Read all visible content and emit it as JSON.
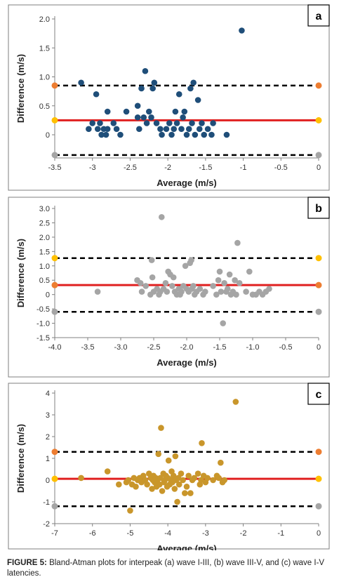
{
  "chart_data": [
    {
      "type": "scatter",
      "panel_label": "a",
      "xlabel": "Average (m/s)",
      "ylabel": "Difference (m/s)",
      "xlim": [
        -3.5,
        0
      ],
      "ylim": [
        -0.4,
        2.0
      ],
      "xticks": [
        -3.5,
        -3,
        -2.5,
        -2,
        -1.5,
        -1,
        -0.5,
        0
      ],
      "xtick_labels": [
        "-3.5",
        "-3",
        "-2.5",
        "-2",
        "-1.5",
        "-1",
        "-0.5",
        "0"
      ],
      "yticks": [
        0,
        0.5,
        1.0,
        1.5,
        2.0
      ],
      "ytick_labels": [
        "0",
        "0.5",
        "1.0",
        "1.5",
        "2.0"
      ],
      "point_color": "#1f4e79",
      "mean_line": 0.25,
      "upper_loa": 0.85,
      "lower_loa": -0.35,
      "endpoint_colors": {
        "upper": "#ed7d31",
        "mean": "#ffc000",
        "lower": "#a5a5a5"
      },
      "points": [
        [
          -3.15,
          0.9
        ],
        [
          -3.05,
          0.1
        ],
        [
          -3.0,
          0.2
        ],
        [
          -2.95,
          0.7
        ],
        [
          -2.93,
          0.1
        ],
        [
          -2.9,
          0.2
        ],
        [
          -2.88,
          0.0
        ],
        [
          -2.85,
          0.1
        ],
        [
          -2.82,
          0.0
        ],
        [
          -2.8,
          0.4
        ],
        [
          -2.8,
          0.1
        ],
        [
          -2.72,
          0.2
        ],
        [
          -2.68,
          0.1
        ],
        [
          -2.63,
          0.0
        ],
        [
          -2.55,
          0.4
        ],
        [
          -2.4,
          0.5
        ],
        [
          -2.4,
          0.3
        ],
        [
          -2.38,
          0.1
        ],
        [
          -2.35,
          0.8
        ],
        [
          -2.32,
          0.3
        ],
        [
          -2.3,
          1.1
        ],
        [
          -2.28,
          0.2
        ],
        [
          -2.25,
          0.4
        ],
        [
          -2.22,
          0.3
        ],
        [
          -2.2,
          0.8
        ],
        [
          -2.18,
          0.9
        ],
        [
          -2.15,
          0.2
        ],
        [
          -2.1,
          0.1
        ],
        [
          -2.08,
          0.0
        ],
        [
          -2.02,
          0.1
        ],
        [
          -1.98,
          0.2
        ],
        [
          -1.95,
          0.0
        ],
        [
          -1.92,
          0.1
        ],
        [
          -1.9,
          0.4
        ],
        [
          -1.88,
          0.2
        ],
        [
          -1.85,
          0.7
        ],
        [
          -1.82,
          0.1
        ],
        [
          -1.8,
          0.3
        ],
        [
          -1.78,
          0.4
        ],
        [
          -1.75,
          0.0
        ],
        [
          -1.72,
          0.1
        ],
        [
          -1.7,
          0.8
        ],
        [
          -1.68,
          0.2
        ],
        [
          -1.66,
          0.9
        ],
        [
          -1.64,
          0.0
        ],
        [
          -1.6,
          0.6
        ],
        [
          -1.58,
          0.1
        ],
        [
          -1.55,
          0.2
        ],
        [
          -1.52,
          0.0
        ],
        [
          -1.47,
          0.1
        ],
        [
          -1.42,
          0.0
        ],
        [
          -1.4,
          0.2
        ],
        [
          -1.22,
          0.0
        ],
        [
          -1.02,
          1.8
        ]
      ]
    },
    {
      "type": "scatter",
      "panel_label": "b",
      "xlabel": "Average (m/s)",
      "ylabel": "Difference (m/s)",
      "xlim": [
        -4.0,
        0
      ],
      "ylim": [
        -1.5,
        3.0
      ],
      "xticks": [
        -4.0,
        -3.5,
        -3.0,
        -2.5,
        -2.0,
        -1.5,
        -1.0,
        -0.5,
        0
      ],
      "xtick_labels": [
        "-4.0",
        "-3.5",
        "-3.0",
        "-2.5",
        "-2.0",
        "-1.5",
        "-1.0",
        "-0.5",
        "0"
      ],
      "yticks": [
        -1.5,
        -1.0,
        -0.5,
        0,
        0.5,
        1.0,
        1.5,
        2.0,
        2.5,
        3.0
      ],
      "ytick_labels": [
        "-1.5",
        "-1.0",
        "-0.5",
        "0",
        "0.5",
        "1.0",
        "1.5",
        "2.0",
        "2.5",
        "3.0"
      ],
      "point_color": "#a5a5a5",
      "mean_line": 0.33,
      "upper_loa": 1.27,
      "lower_loa": -0.6,
      "endpoint_colors": {
        "upper": "#ffc000",
        "mean": "#ed7d31",
        "lower": "#a5a5a5"
      },
      "points": [
        [
          -3.35,
          0.1
        ],
        [
          -2.75,
          0.5
        ],
        [
          -2.7,
          0.4
        ],
        [
          -2.68,
          0.1
        ],
        [
          -2.62,
          0.3
        ],
        [
          -2.55,
          0.0
        ],
        [
          -2.53,
          1.2
        ],
        [
          -2.52,
          0.6
        ],
        [
          -2.5,
          0.1
        ],
        [
          -2.45,
          0.2
        ],
        [
          -2.42,
          0.0
        ],
        [
          -2.4,
          0.1
        ],
        [
          -2.38,
          2.7
        ],
        [
          -2.35,
          0.2
        ],
        [
          -2.32,
          0.4
        ],
        [
          -2.3,
          0.1
        ],
        [
          -2.28,
          0.8
        ],
        [
          -2.25,
          0.7
        ],
        [
          -2.22,
          0.3
        ],
        [
          -2.2,
          0.6
        ],
        [
          -2.18,
          0.1
        ],
        [
          -2.15,
          0.0
        ],
        [
          -2.12,
          0.2
        ],
        [
          -2.1,
          0.0
        ],
        [
          -2.08,
          0.1
        ],
        [
          -2.05,
          0.3
        ],
        [
          -2.02,
          1.0
        ],
        [
          -2.0,
          0.2
        ],
        [
          -1.97,
          0.1
        ],
        [
          -1.95,
          1.1
        ],
        [
          -1.93,
          1.2
        ],
        [
          -1.92,
          0.2
        ],
        [
          -1.9,
          0.3
        ],
        [
          -1.88,
          0.0
        ],
        [
          -1.85,
          0.1
        ],
        [
          -1.8,
          0.2
        ],
        [
          -1.75,
          0.0
        ],
        [
          -1.72,
          0.1
        ],
        [
          -1.6,
          0.3
        ],
        [
          -1.55,
          0.0
        ],
        [
          -1.52,
          0.5
        ],
        [
          -1.5,
          0.8
        ],
        [
          -1.48,
          0.1
        ],
        [
          -1.45,
          -1.0
        ],
        [
          -1.43,
          0.4
        ],
        [
          -1.4,
          0.1
        ],
        [
          -1.38,
          0.2
        ],
        [
          -1.35,
          0.7
        ],
        [
          -1.33,
          0.0
        ],
        [
          -1.3,
          0.1
        ],
        [
          -1.27,
          0.5
        ],
        [
          -1.25,
          0.0
        ],
        [
          -1.23,
          1.8
        ],
        [
          -1.2,
          0.4
        ],
        [
          -1.1,
          0.1
        ],
        [
          -1.05,
          0.8
        ],
        [
          -1.0,
          0.0
        ],
        [
          -0.95,
          0.0
        ],
        [
          -0.9,
          0.1
        ],
        [
          -0.85,
          0.0
        ],
        [
          -0.8,
          0.1
        ],
        [
          -0.75,
          0.2
        ]
      ]
    },
    {
      "type": "scatter",
      "panel_label": "c",
      "xlabel": "Average (m/s)",
      "ylabel": "Difference (m/s)",
      "xlim": [
        -7,
        0
      ],
      "ylim": [
        -2,
        4
      ],
      "xticks": [
        -7,
        -6,
        -5,
        -4,
        -3,
        -2,
        -1,
        0
      ],
      "xtick_labels": [
        "-7",
        "-6",
        "-5",
        "-4",
        "-3",
        "-2",
        "-1",
        "0"
      ],
      "yticks": [
        -2,
        -1,
        0,
        1,
        2,
        3,
        4
      ],
      "ytick_labels": [
        "-2",
        "-1",
        "0",
        "1",
        "2",
        "3",
        "4"
      ],
      "point_color": "#c9962b",
      "mean_line": 0.06,
      "upper_loa": 1.3,
      "lower_loa": -1.2,
      "endpoint_colors": {
        "upper": "#ed7d31",
        "mean": "#ffc000",
        "lower": "#a5a5a5"
      },
      "points": [
        [
          -6.3,
          0.1
        ],
        [
          -5.6,
          0.4
        ],
        [
          -5.3,
          -0.2
        ],
        [
          -5.1,
          -0.1
        ],
        [
          -5.05,
          0.0
        ],
        [
          -5.0,
          -1.4
        ],
        [
          -4.95,
          -0.2
        ],
        [
          -4.9,
          0.1
        ],
        [
          -4.85,
          -0.3
        ],
        [
          -4.8,
          0.0
        ],
        [
          -4.75,
          0.1
        ],
        [
          -4.7,
          -0.1
        ],
        [
          -4.65,
          0.2
        ],
        [
          -4.6,
          0.0
        ],
        [
          -4.55,
          -0.2
        ],
        [
          -4.5,
          0.3
        ],
        [
          -4.45,
          0.1
        ],
        [
          -4.42,
          -0.4
        ],
        [
          -4.4,
          0.0
        ],
        [
          -4.38,
          0.2
        ],
        [
          -4.35,
          -0.1
        ],
        [
          -4.32,
          0.1
        ],
        [
          -4.3,
          -0.3
        ],
        [
          -4.28,
          0.0
        ],
        [
          -4.25,
          1.2
        ],
        [
          -4.22,
          -0.2
        ],
        [
          -4.2,
          0.1
        ],
        [
          -4.18,
          2.4
        ],
        [
          -4.15,
          -0.5
        ],
        [
          -4.12,
          0.3
        ],
        [
          -4.1,
          -0.1
        ],
        [
          -4.08,
          0.0
        ],
        [
          -4.05,
          0.2
        ],
        [
          -4.02,
          -0.3
        ],
        [
          -4.0,
          0.1
        ],
        [
          -3.98,
          0.9
        ],
        [
          -3.95,
          -0.2
        ],
        [
          -3.92,
          0.0
        ],
        [
          -3.9,
          0.4
        ],
        [
          -3.88,
          -0.1
        ],
        [
          -3.85,
          0.2
        ],
        [
          -3.82,
          -0.4
        ],
        [
          -3.8,
          1.1
        ],
        [
          -3.78,
          0.0
        ],
        [
          -3.75,
          -1.0
        ],
        [
          -3.72,
          0.1
        ],
        [
          -3.7,
          -0.2
        ],
        [
          -3.65,
          0.3
        ],
        [
          -3.6,
          0.0
        ],
        [
          -3.55,
          -0.6
        ],
        [
          -3.5,
          -0.3
        ],
        [
          -3.45,
          0.2
        ],
        [
          -3.4,
          -0.6
        ],
        [
          -3.35,
          0.0
        ],
        [
          -3.3,
          0.1
        ],
        [
          -3.2,
          0.3
        ],
        [
          -3.15,
          -0.2
        ],
        [
          -3.12,
          0.0
        ],
        [
          -3.1,
          1.7
        ],
        [
          -3.05,
          0.2
        ],
        [
          -3.0,
          -0.1
        ],
        [
          -2.95,
          0.1
        ],
        [
          -2.8,
          0.0
        ],
        [
          -2.7,
          0.2
        ],
        [
          -2.65,
          0.1
        ],
        [
          -2.6,
          0.8
        ],
        [
          -2.55,
          -0.1
        ],
        [
          -2.5,
          0.0
        ],
        [
          -2.2,
          3.6
        ]
      ]
    }
  ],
  "caption": {
    "lead": "FIGURE 5:",
    "text": " Bland-Atman plots for interpeak (a) wave I-III, (b) wave III-V, and (c) wave I-V latencies."
  }
}
